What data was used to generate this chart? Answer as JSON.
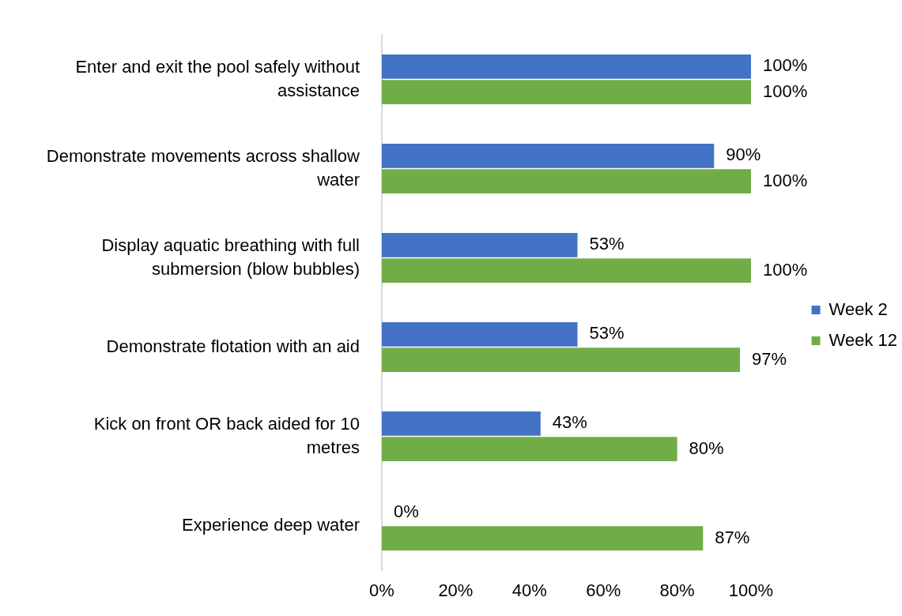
{
  "chart_data": {
    "type": "bar",
    "orientation": "horizontal",
    "categories": [
      "Enter and exit the pool safely without assistance",
      "Demonstrate movements across shallow water",
      "Display aquatic breathing with full submersion (blow bubbles)",
      "Demonstrate flotation with an aid",
      "Kick on front OR back aided for 10 metres",
      "Experience deep water"
    ],
    "series": [
      {
        "name": "Week 2",
        "color": "#4472c4",
        "values": [
          100,
          90,
          53,
          53,
          43,
          0
        ],
        "value_labels": [
          "100%",
          "90%",
          "53%",
          "53%",
          "43%",
          "0%"
        ]
      },
      {
        "name": "Week 12",
        "color": "#70ad47",
        "values": [
          100,
          100,
          100,
          97,
          80,
          87
        ],
        "value_labels": [
          "100%",
          "100%",
          "100%",
          "97%",
          "80%",
          "87%"
        ]
      }
    ],
    "xlim": [
      0,
      100
    ],
    "xticks": [
      {
        "value": 0,
        "label": "0%"
      },
      {
        "value": 20,
        "label": "20%"
      },
      {
        "value": 40,
        "label": "40%"
      },
      {
        "value": 60,
        "label": "60%"
      },
      {
        "value": 80,
        "label": "80%"
      },
      {
        "value": 100,
        "label": "100%"
      }
    ],
    "legend": "right"
  }
}
